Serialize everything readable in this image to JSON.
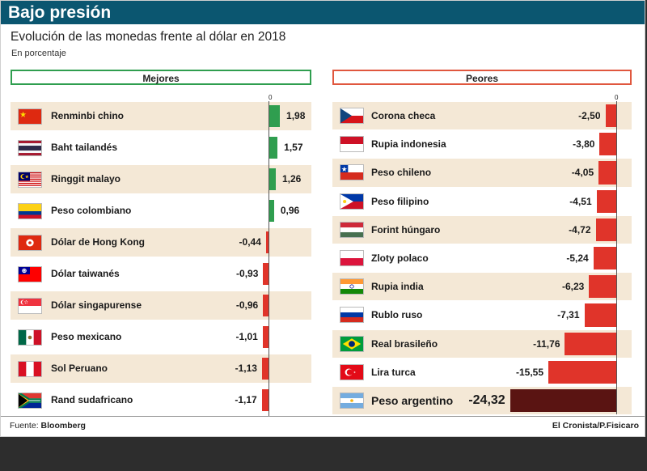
{
  "header": {
    "title": "Bajo presión",
    "subtitle": "Evolución de las monedas frente al dólar en 2018",
    "units": "En porcentaje"
  },
  "panels": {
    "left_title": "Mejores",
    "right_title": "Peores",
    "zero_label": "0"
  },
  "colors": {
    "header_bg": "#0b5670",
    "positive": "#2f9e4f",
    "negative": "#e0342a",
    "highlight": "#5a1412",
    "row_shade": "#f4e8d6"
  },
  "chart_data": [
    {
      "type": "bar",
      "orientation": "horizontal",
      "title": "Mejores",
      "categories": [
        "Renminbi chino",
        "Baht tailandés",
        "Ringgit malayo",
        "Peso colombiano",
        "Dólar de Hong Kong",
        "Dólar taiwanés",
        "Dólar singapurense",
        "Peso mexicano",
        "Sol Peruano",
        "Rand sudafricano"
      ],
      "values": [
        1.98,
        1.57,
        1.26,
        0.96,
        -0.44,
        -0.93,
        -0.96,
        -1.01,
        -1.13,
        -1.17
      ],
      "labels": [
        "1,98",
        "1,57",
        "1,26",
        "0,96",
        "-0,44",
        "-0,93",
        "-0,96",
        "-1,01",
        "-1,13",
        "-1,17"
      ],
      "flags": [
        "china-flag",
        "thailand-flag",
        "malaysia-flag",
        "colombia-flag",
        "hong-kong-flag",
        "taiwan-flag",
        "singapore-flag",
        "mexico-flag",
        "peru-flag",
        "south-africa-flag"
      ],
      "grid": false
    },
    {
      "type": "bar",
      "orientation": "horizontal",
      "title": "Peores",
      "categories": [
        "Corona checa",
        "Rupia indonesia",
        "Peso chileno",
        "Peso filipino",
        "Forint húngaro",
        "Zloty polaco",
        "Rupia india",
        "Rublo ruso",
        "Real brasileño",
        "Lira turca",
        "Peso argentino"
      ],
      "values": [
        -2.5,
        -3.8,
        -4.05,
        -4.51,
        -4.72,
        -5.24,
        -6.23,
        -7.31,
        -11.76,
        -15.55,
        -24.32
      ],
      "labels": [
        "-2,50",
        "-3,80",
        "-4,05",
        "-4,51",
        "-4,72",
        "-5,24",
        "-6,23",
        "-7,31",
        "-11,76",
        "-15,55",
        "-24,32"
      ],
      "flags": [
        "czech-flag",
        "indonesia-flag",
        "chile-flag",
        "philippines-flag",
        "hungary-flag",
        "poland-flag",
        "india-flag",
        "russia-flag",
        "brazil-flag",
        "turkey-flag",
        "argentina-flag"
      ],
      "highlight": "Peso argentino",
      "grid": false
    }
  ],
  "footer": {
    "source_prefix": "Fuente: ",
    "source_name": "Bloomberg",
    "credit": "El Cronista/P.Fisicaro"
  }
}
